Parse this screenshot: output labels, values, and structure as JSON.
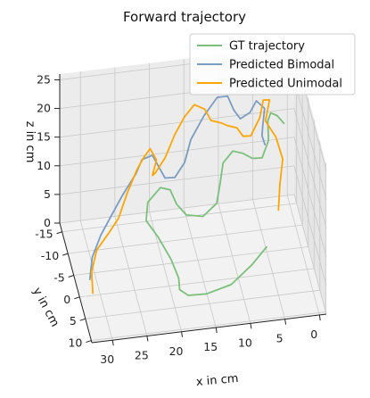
{
  "chart_data": {
    "type": "line",
    "projection": "3d",
    "title": "Forward trajectory",
    "xlabel": "x in cm",
    "ylabel": "y in cm",
    "zlabel": "z in cm",
    "x_ticks": [
      "30",
      "25",
      "20",
      "15",
      "10",
      "5",
      "0"
    ],
    "y_ticks": [
      "-15",
      "-10",
      "-5",
      "0",
      "5",
      "10"
    ],
    "z_ticks": [
      "25",
      "20",
      "15",
      "10",
      "5",
      "0"
    ],
    "legend_position": "top-right",
    "grid": true,
    "series": [
      {
        "name": "GT trajectory",
        "color": "#7cbf7c",
        "points": [
          [
            6.8,
            5.4,
            9.0
          ],
          [
            9.0,
            5.8,
            6.5
          ],
          [
            12.0,
            5.8,
            3.5
          ],
          [
            15.5,
            5.3,
            2.0
          ],
          [
            18.0,
            4.5,
            1.5
          ],
          [
            19.0,
            3.0,
            1.5
          ],
          [
            18.8,
            1.0,
            2.0
          ],
          [
            19.5,
            -1.5,
            3.5
          ],
          [
            21.0,
            -3.5,
            6.0
          ],
          [
            22.5,
            -5.0,
            8.0
          ],
          [
            22.0,
            -6.5,
            10.0
          ],
          [
            20.0,
            -7.5,
            11.5
          ],
          [
            18.5,
            -8.0,
            10.5
          ],
          [
            17.5,
            -8.5,
            7.5
          ],
          [
            16.0,
            -9.0,
            5.0
          ],
          [
            13.5,
            -9.5,
            4.0
          ],
          [
            11.5,
            -9.5,
            6.0
          ],
          [
            11.0,
            -9.5,
            9.5
          ],
          [
            10.5,
            -10.0,
            12.5
          ],
          [
            9.0,
            -10.5,
            14.0
          ],
          [
            7.5,
            -11.0,
            13.0
          ],
          [
            6.0,
            -11.5,
            11.5
          ],
          [
            4.5,
            -12.0,
            11.0
          ],
          [
            3.5,
            -12.5,
            13.5
          ],
          [
            3.5,
            -13.0,
            16.5
          ],
          [
            3.0,
            -13.5,
            17.5
          ],
          [
            2.0,
            -14.0,
            16.5
          ],
          [
            1.0,
            -14.0,
            15.0
          ]
        ]
      },
      {
        "name": "Predicted Bimodal",
        "color": "#7a9cc0",
        "points": [
          [
            31.0,
            -3.0,
            0.5
          ],
          [
            30.5,
            -4.0,
            3.5
          ],
          [
            29.0,
            -5.5,
            6.0
          ],
          [
            27.5,
            -6.5,
            8.0
          ],
          [
            25.5,
            -7.5,
            11.0
          ],
          [
            23.5,
            -8.0,
            14.0
          ],
          [
            22.5,
            -8.5,
            16.0
          ],
          [
            21.0,
            -8.5,
            16.5
          ],
          [
            20.0,
            -9.0,
            14.0
          ],
          [
            19.0,
            -9.5,
            11.5
          ],
          [
            17.5,
            -10.0,
            11.0
          ],
          [
            16.0,
            -10.5,
            13.0
          ],
          [
            15.0,
            -11.0,
            16.5
          ],
          [
            13.0,
            -11.5,
            20.0
          ],
          [
            11.0,
            -12.0,
            22.5
          ],
          [
            9.5,
            -12.0,
            22.5
          ],
          [
            8.5,
            -12.5,
            19.5
          ],
          [
            7.5,
            -13.0,
            17.5
          ],
          [
            6.0,
            -13.5,
            18.0
          ],
          [
            5.0,
            -14.0,
            19.5
          ],
          [
            3.8,
            -14.0,
            18.0
          ],
          [
            4.0,
            -14.5,
            14.5
          ],
          [
            4.0,
            -15.0,
            12.5
          ],
          [
            3.5,
            -15.5,
            10.5
          ]
        ]
      },
      {
        "name": "Predicted Unimodal",
        "color": "#ffa500",
        "points": [
          [
            31.0,
            -0.5,
            0.0
          ],
          [
            31.0,
            -1.5,
            3.0
          ],
          [
            30.0,
            -3.0,
            5.5
          ],
          [
            28.0,
            -4.5,
            7.0
          ],
          [
            26.5,
            -5.0,
            9.0
          ],
          [
            25.0,
            -6.5,
            12.0
          ],
          [
            23.5,
            -7.0,
            15.5
          ],
          [
            22.5,
            -7.0,
            17.5
          ],
          [
            21.5,
            -7.5,
            18.5
          ],
          [
            20.5,
            -8.0,
            16.0
          ],
          [
            21.0,
            -8.5,
            13.0
          ],
          [
            20.5,
            -9.0,
            13.0
          ],
          [
            19.0,
            -9.5,
            15.0
          ],
          [
            17.5,
            -10.0,
            18.5
          ],
          [
            16.0,
            -10.5,
            21.0
          ],
          [
            14.5,
            -11.0,
            22.5
          ],
          [
            13.0,
            -11.0,
            21.5
          ],
          [
            12.0,
            -11.5,
            19.0
          ],
          [
            10.5,
            -12.0,
            18.0
          ],
          [
            9.5,
            -12.5,
            17.0
          ],
          [
            8.0,
            -13.0,
            16.0
          ],
          [
            7.0,
            -13.5,
            14.0
          ],
          [
            5.8,
            -14.0,
            13.5
          ],
          [
            4.5,
            -14.0,
            16.5
          ],
          [
            4.0,
            -14.0,
            19.5
          ],
          [
            3.0,
            -14.5,
            19.0
          ],
          [
            3.5,
            -15.0,
            15.0
          ],
          [
            2.0,
            -15.0,
            12.0
          ],
          [
            1.0,
            -15.0,
            8.0
          ],
          [
            1.5,
            -14.5,
            4.0
          ],
          [
            1.8,
            -14.0,
            0.0
          ]
        ]
      }
    ]
  }
}
